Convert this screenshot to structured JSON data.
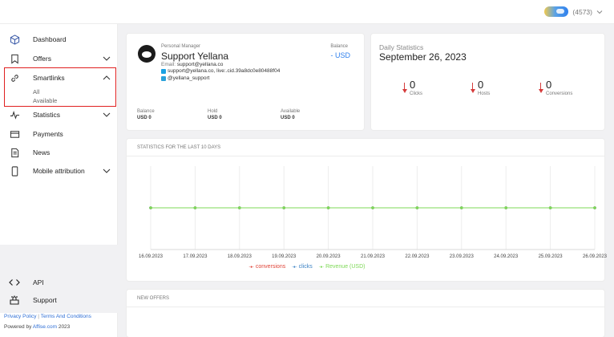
{
  "topbar": {
    "user_id": "(4573)"
  },
  "sidebar": {
    "items": [
      {
        "label": "Dashboard",
        "icon": "cube-icon"
      },
      {
        "label": "Offers",
        "icon": "bookmark-icon"
      },
      {
        "label": "Smartlinks",
        "icon": "link-icon"
      },
      {
        "label": "Statistics",
        "icon": "pulse-icon"
      },
      {
        "label": "Payments",
        "icon": "card-icon"
      },
      {
        "label": "News",
        "icon": "document-icon"
      },
      {
        "label": "Mobile attribution",
        "icon": "phone-icon"
      }
    ],
    "smartlinks_sub": [
      "All",
      "Available"
    ],
    "collapse": "‹",
    "footer_items": [
      {
        "label": "API",
        "icon": "code-icon"
      },
      {
        "label": "Support",
        "icon": "support-icon"
      }
    ],
    "privacy": "Privacy Policy",
    "terms": "Terms And Conditions",
    "powered_prefix": "Powered by",
    "powered_link": "Affise.com",
    "powered_year": "2023"
  },
  "manager": {
    "role": "Personal Manager",
    "name": "Support Yellana",
    "email_label": "Email:",
    "email": "support@yellana.co",
    "skype": "support@yellana.co, live:.cid.39a8dc0e80488f04",
    "telegram": "@yellana_support",
    "balance_label": "Balance",
    "balance_value": "- USD",
    "bottom": [
      {
        "label": "Balance",
        "value": "USD 0"
      },
      {
        "label": "Hold",
        "value": "USD 0"
      },
      {
        "label": "Available",
        "value": "USD 0"
      }
    ]
  },
  "daily": {
    "title": "Daily Statistics",
    "date": "September 26, 2023",
    "stats": [
      {
        "value": "0",
        "label": "Clicks"
      },
      {
        "value": "0",
        "label": "Hosts"
      },
      {
        "value": "0",
        "label": "Conversions"
      }
    ]
  },
  "stats10": {
    "title": "STATISTICS FOR THE LAST 10 DAYS"
  },
  "new_offers": {
    "title": "NEW OFFERS"
  },
  "colors": {
    "accent": "#2f6fd6",
    "conversions": "#e0463a",
    "clicks": "#3b82c4",
    "revenue": "#7ed957",
    "down_arrow": "#d53b3b"
  },
  "chart_data": {
    "type": "line",
    "categories": [
      "16.09.2023",
      "17.09.2023",
      "18.09.2023",
      "19.09.2023",
      "20.09.2023",
      "21.09.2023",
      "22.09.2023",
      "23.09.2023",
      "24.09.2023",
      "25.09.2023",
      "26.09.2023"
    ],
    "series": [
      {
        "name": "conversions",
        "values": [
          0,
          0,
          0,
          0,
          0,
          0,
          0,
          0,
          0,
          0,
          0
        ]
      },
      {
        "name": "clicks",
        "values": [
          0,
          0,
          0,
          0,
          0,
          0,
          0,
          0,
          0,
          0,
          0
        ]
      },
      {
        "name": "Revenue (USD)",
        "values": [
          0,
          0,
          0,
          0,
          0,
          0,
          0,
          0,
          0,
          0,
          0
        ]
      }
    ],
    "title": "STATISTICS FOR THE LAST 10 DAYS",
    "grid": true,
    "legend": "bottom"
  }
}
